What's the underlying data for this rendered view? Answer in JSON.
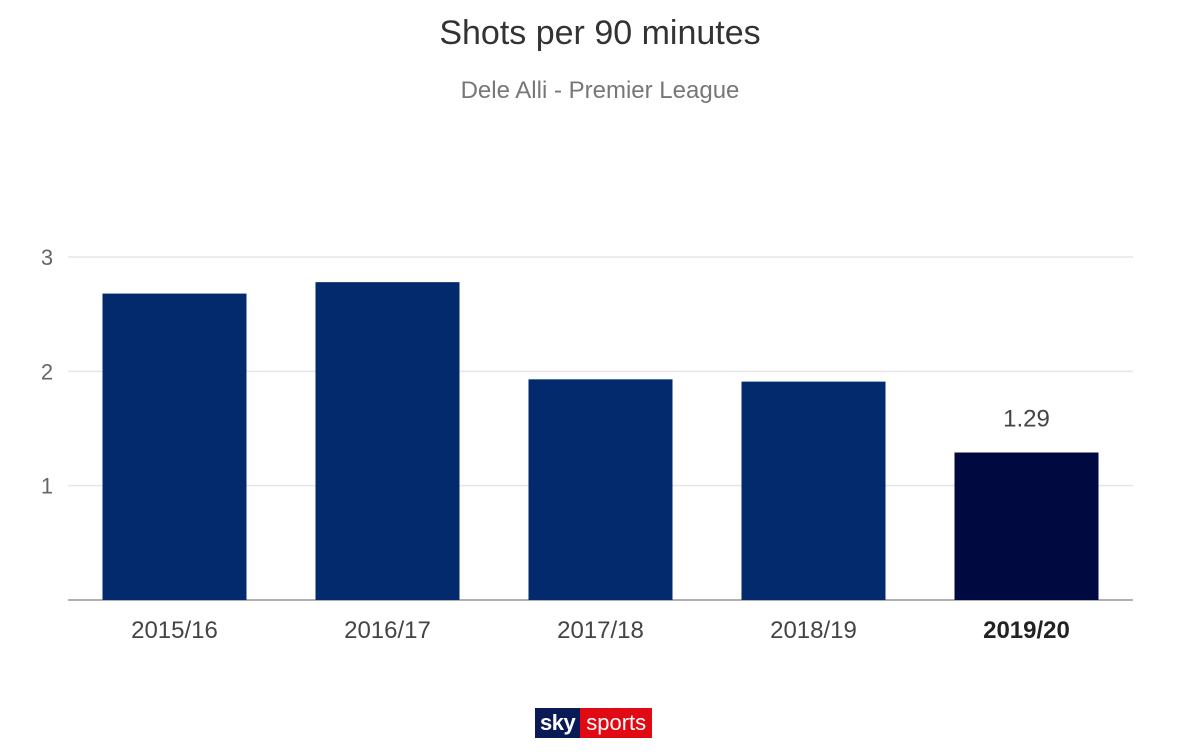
{
  "chart_data": {
    "type": "bar",
    "title": "Shots per 90 minutes",
    "subtitle": "Dele Alli - Premier League",
    "categories": [
      "2015/16",
      "2016/17",
      "2017/18",
      "2018/19",
      "2019/20"
    ],
    "values": [
      2.68,
      2.78,
      1.93,
      1.91,
      1.29
    ],
    "highlight_index": 4,
    "data_labels": [
      null,
      null,
      null,
      null,
      "1.29"
    ],
    "ylim": [
      0,
      3
    ],
    "yticks": [
      1,
      2,
      3
    ],
    "grid": true,
    "colors": {
      "bar": "#022a6c",
      "bar_highlight": "#010a40",
      "grid": "#e6e6e6",
      "axis": "#b0b0b0"
    }
  },
  "branding": {
    "logo_left": "sky",
    "logo_right": "sports"
  }
}
